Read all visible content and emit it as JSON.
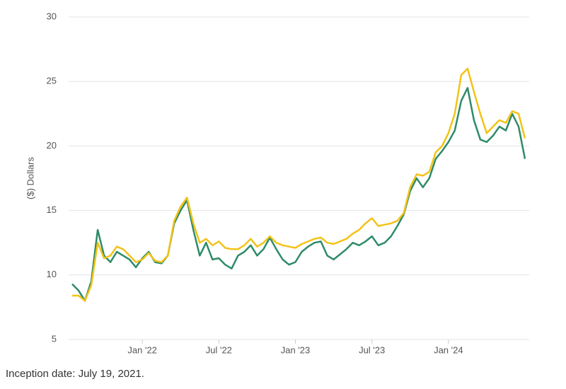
{
  "chart_data": {
    "type": "line",
    "ylabel": "($) Dollars",
    "note": "Inception date: July 19, 2021.",
    "categories": [
      null,
      null,
      null,
      null,
      null,
      null,
      null,
      null,
      null,
      null,
      null,
      "Jan '22",
      null,
      null,
      null,
      null,
      null,
      null,
      null,
      null,
      null,
      null,
      null,
      "Jul '22",
      null,
      null,
      null,
      null,
      null,
      null,
      null,
      null,
      null,
      null,
      null,
      "Jan '23",
      null,
      null,
      null,
      null,
      null,
      null,
      null,
      null,
      null,
      null,
      null,
      "Jul '23",
      null,
      null,
      null,
      null,
      null,
      null,
      null,
      null,
      null,
      null,
      null,
      "Jan '24",
      null,
      null,
      null,
      null,
      null,
      null,
      null,
      null,
      null,
      null,
      null,
      null
    ],
    "series": [
      {
        "color": "#2e8b68",
        "values": [
          9.3,
          8.8,
          8.0,
          9.5,
          13.5,
          11.5,
          11.0,
          11.8,
          11.5,
          11.2,
          10.6,
          11.3,
          11.8,
          11.0,
          10.9,
          11.5,
          14.0,
          15.0,
          15.8,
          13.5,
          11.5,
          12.5,
          11.2,
          11.3,
          10.8,
          10.5,
          11.5,
          11.8,
          12.3,
          11.5,
          12.0,
          12.9,
          12.0,
          11.2,
          10.8,
          11.0,
          11.8,
          12.2,
          12.5,
          12.6,
          11.5,
          11.2,
          11.6,
          12.0,
          12.5,
          12.3,
          12.6,
          13.0,
          12.3,
          12.5,
          13.0,
          13.8,
          14.7,
          16.5,
          17.5,
          16.8,
          17.5,
          19.0,
          19.6,
          20.3,
          21.2,
          23.5,
          24.5,
          22.0,
          20.5,
          20.3,
          20.8,
          21.5,
          21.2,
          22.5,
          21.5,
          19.0
        ]
      },
      {
        "color": "#f2c318",
        "values": [
          8.4,
          8.4,
          8.0,
          9.2,
          12.5,
          11.3,
          11.5,
          12.2,
          12.0,
          11.5,
          11.0,
          11.2,
          11.7,
          11.1,
          11.0,
          11.5,
          14.2,
          15.3,
          16.0,
          14.0,
          12.5,
          12.8,
          12.3,
          12.6,
          12.1,
          12.0,
          12.0,
          12.3,
          12.8,
          12.2,
          12.5,
          13.0,
          12.5,
          12.3,
          12.2,
          12.1,
          12.4,
          12.6,
          12.8,
          12.9,
          12.5,
          12.4,
          12.6,
          12.8,
          13.2,
          13.5,
          14.0,
          14.4,
          13.8,
          13.9,
          14.0,
          14.2,
          14.8,
          16.8,
          17.8,
          17.7,
          18.0,
          19.5,
          20.0,
          21.0,
          22.5,
          25.5,
          26.0,
          24.2,
          22.5,
          21.0,
          21.5,
          22.0,
          21.8,
          22.7,
          22.5,
          20.6
        ]
      }
    ],
    "ylim": [
      5,
      30
    ],
    "yticks": [
      5,
      10,
      15,
      20,
      25,
      30
    ],
    "grid": true
  }
}
